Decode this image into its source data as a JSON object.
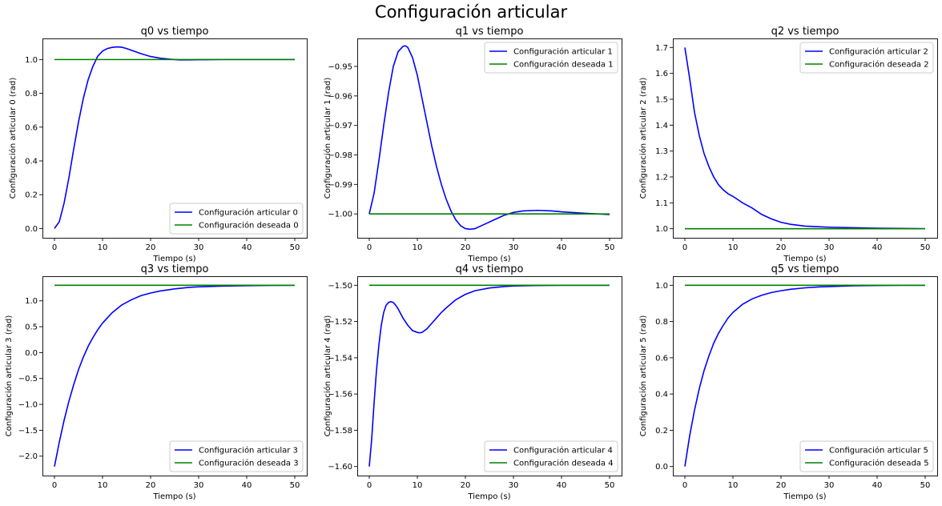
{
  "figure": {
    "suptitle": "Configuración articular",
    "colors": {
      "actual": "#0000ff",
      "desired": "#008000"
    }
  },
  "chart_data": [
    {
      "type": "line",
      "title": "q0 vs tiempo",
      "xlabel": "Tiempo (s)",
      "ylabel": "Configuración articular 0 (rad)",
      "xlim": [
        -2.5,
        52.5
      ],
      "ylim": [
        -0.055,
        1.125
      ],
      "xticks": [
        "0",
        "10",
        "20",
        "30",
        "40",
        "50"
      ],
      "xtick_values": [
        0,
        10,
        20,
        30,
        40,
        50
      ],
      "yticks": [
        "0.0",
        "0.2",
        "0.4",
        "0.6",
        "0.8",
        "1.0"
      ],
      "ytick_values": [
        0,
        0.2,
        0.4,
        0.6,
        0.8,
        1.0
      ],
      "grid": false,
      "legend": "lower right",
      "series": [
        {
          "name": "Configuración articular 0",
          "color": "#0000ff",
          "x": [
            0,
            1,
            2,
            3,
            4,
            5,
            6,
            7,
            8,
            9,
            10,
            11,
            12,
            13,
            14,
            15,
            16,
            18,
            20,
            22,
            24,
            26,
            28,
            30,
            35,
            40,
            45,
            50
          ],
          "y": [
            0.0,
            0.04,
            0.15,
            0.3,
            0.47,
            0.63,
            0.77,
            0.88,
            0.96,
            1.02,
            1.05,
            1.065,
            1.072,
            1.075,
            1.073,
            1.065,
            1.055,
            1.035,
            1.018,
            1.008,
            1.002,
            0.998,
            0.998,
            0.999,
            1.0,
            1.0,
            1.0,
            1.0
          ]
        },
        {
          "name": "Configuración deseada 0",
          "color": "#008000",
          "x": [
            0,
            50
          ],
          "y": [
            1.0,
            1.0
          ]
        }
      ]
    },
    {
      "type": "line",
      "title": "q1 vs tiempo",
      "xlabel": "Tiempo (s)",
      "ylabel": "Configuración articular 1 (rad)",
      "xlim": [
        -2.5,
        52.5
      ],
      "ylim": [
        -1.0081,
        -0.9405
      ],
      "xticks": [
        "0",
        "10",
        "20",
        "30",
        "40",
        "50"
      ],
      "xtick_values": [
        0,
        10,
        20,
        30,
        40,
        50
      ],
      "yticks": [
        "−1.00",
        "−0.99",
        "−0.98",
        "−0.97",
        "−0.96",
        "−0.95"
      ],
      "ytick_values": [
        -1.0,
        -0.99,
        -0.98,
        -0.97,
        -0.96,
        -0.95
      ],
      "grid": false,
      "legend": "upper right",
      "series": [
        {
          "name": "Configuración articular 1",
          "color": "#0000ff",
          "x": [
            0,
            1,
            2,
            3,
            4,
            5,
            6,
            7,
            7.5,
            8,
            9,
            10,
            11,
            12,
            13,
            14,
            15,
            16,
            17,
            18,
            19,
            20,
            21,
            22,
            24,
            26,
            28,
            30,
            32,
            35,
            38,
            40,
            45,
            50
          ],
          "y": [
            -1.0,
            -0.993,
            -0.982,
            -0.97,
            -0.959,
            -0.95,
            -0.945,
            -0.9432,
            -0.943,
            -0.9435,
            -0.947,
            -0.953,
            -0.961,
            -0.969,
            -0.977,
            -0.984,
            -0.99,
            -0.995,
            -0.999,
            -1.002,
            -1.004,
            -1.005,
            -1.0052,
            -1.005,
            -1.0035,
            -1.002,
            -1.0005,
            -0.9995,
            -0.999,
            -0.9988,
            -0.999,
            -0.9993,
            -0.9998,
            -1.0002
          ]
        },
        {
          "name": "Configuración deseada 1",
          "color": "#008000",
          "x": [
            0,
            50
          ],
          "y": [
            -1.0,
            -1.0
          ]
        }
      ]
    },
    {
      "type": "line",
      "title": "q2 vs tiempo",
      "xlabel": "Tiempo (s)",
      "ylabel": "Configuración articular 2 (rad)",
      "xlim": [
        -2.5,
        52.5
      ],
      "ylim": [
        0.965,
        1.735
      ],
      "xticks": [
        "0",
        "10",
        "20",
        "30",
        "40",
        "50"
      ],
      "xtick_values": [
        0,
        10,
        20,
        30,
        40,
        50
      ],
      "yticks": [
        "1.0",
        "1.1",
        "1.2",
        "1.3",
        "1.4",
        "1.5",
        "1.6",
        "1.7"
      ],
      "ytick_values": [
        1.0,
        1.1,
        1.2,
        1.3,
        1.4,
        1.5,
        1.6,
        1.7
      ],
      "grid": false,
      "legend": "upper right",
      "series": [
        {
          "name": "Configuración articular 2",
          "color": "#0000ff",
          "x": [
            0,
            1,
            2,
            3,
            4,
            5,
            6,
            7,
            8,
            9,
            10,
            12,
            14,
            16,
            18,
            20,
            22,
            25,
            30,
            35,
            40,
            45,
            50
          ],
          "y": [
            1.7,
            1.58,
            1.45,
            1.36,
            1.29,
            1.24,
            1.2,
            1.17,
            1.15,
            1.135,
            1.125,
            1.1,
            1.08,
            1.055,
            1.038,
            1.025,
            1.017,
            1.01,
            1.006,
            1.004,
            1.002,
            1.001,
            1.0
          ]
        },
        {
          "name": "Configuración deseada 2",
          "color": "#008000",
          "x": [
            0,
            50
          ],
          "y": [
            1.0,
            1.0
          ]
        }
      ]
    },
    {
      "type": "line",
      "title": "q3 vs tiempo",
      "xlabel": "Tiempo (s)",
      "ylabel": "Configuración articular 3 (rad)",
      "xlim": [
        -2.5,
        52.5
      ],
      "ylim": [
        -2.375,
        1.475
      ],
      "xticks": [
        "0",
        "10",
        "20",
        "30",
        "40",
        "50"
      ],
      "xtick_values": [
        0,
        10,
        20,
        30,
        40,
        50
      ],
      "yticks": [
        "−2.0",
        "−1.5",
        "−1.0",
        "−0.5",
        "0.0",
        "0.5",
        "1.0"
      ],
      "ytick_values": [
        -2.0,
        -1.5,
        -1.0,
        -0.5,
        0.0,
        0.5,
        1.0
      ],
      "grid": false,
      "legend": "lower right",
      "series": [
        {
          "name": "Configuración articular 3",
          "color": "#0000ff",
          "x": [
            0,
            1,
            2,
            3,
            4,
            5,
            6,
            7,
            8,
            9,
            10,
            12,
            14,
            16,
            18,
            20,
            22,
            25,
            28,
            30,
            35,
            40,
            45,
            50
          ],
          "y": [
            -2.2,
            -1.73,
            -1.31,
            -0.94,
            -0.62,
            -0.33,
            -0.09,
            0.12,
            0.29,
            0.44,
            0.57,
            0.77,
            0.92,
            1.02,
            1.1,
            1.15,
            1.19,
            1.23,
            1.26,
            1.27,
            1.285,
            1.293,
            1.297,
            1.3
          ]
        },
        {
          "name": "Configuración deseada 3",
          "color": "#008000",
          "x": [
            0,
            50
          ],
          "y": [
            1.3,
            1.3
          ]
        }
      ]
    },
    {
      "type": "line",
      "title": "q4 vs tiempo",
      "xlabel": "Tiempo (s)",
      "ylabel": "Configuración articular 4 (rad)",
      "xlim": [
        -2.5,
        52.5
      ],
      "ylim": [
        -1.605,
        -1.495
      ],
      "xticks": [
        "0",
        "10",
        "20",
        "30",
        "40",
        "50"
      ],
      "xtick_values": [
        0,
        10,
        20,
        30,
        40,
        50
      ],
      "yticks": [
        "−1.60",
        "−1.58",
        "−1.56",
        "−1.54",
        "−1.52",
        "−1.50"
      ],
      "ytick_values": [
        -1.6,
        -1.58,
        -1.56,
        -1.54,
        -1.52,
        -1.5
      ],
      "grid": false,
      "legend": "lower right",
      "series": [
        {
          "name": "Configuración articular 4",
          "color": "#0000ff",
          "x": [
            0,
            0.5,
            1,
            1.5,
            2,
            2.5,
            3,
            3.5,
            4,
            4.5,
            5,
            5.5,
            6,
            7,
            8,
            9,
            10,
            10.5,
            11,
            12,
            13,
            14,
            15,
            16,
            18,
            20,
            22,
            25,
            28,
            30,
            35,
            40,
            45,
            50
          ],
          "y": [
            -1.6,
            -1.585,
            -1.565,
            -1.547,
            -1.533,
            -1.522,
            -1.515,
            -1.511,
            -1.5095,
            -1.509,
            -1.5095,
            -1.511,
            -1.513,
            -1.518,
            -1.522,
            -1.525,
            -1.526,
            -1.5262,
            -1.526,
            -1.524,
            -1.521,
            -1.518,
            -1.515,
            -1.5125,
            -1.508,
            -1.505,
            -1.503,
            -1.5015,
            -1.5007,
            -1.5004,
            -1.5001,
            -1.5,
            -1.5,
            -1.5
          ]
        },
        {
          "name": "Configuración deseada 4",
          "color": "#008000",
          "x": [
            0,
            50
          ],
          "y": [
            -1.5,
            -1.5
          ]
        }
      ]
    },
    {
      "type": "line",
      "title": "q5 vs tiempo",
      "xlabel": "Tiempo (s)",
      "ylabel": "Configuración articular 5 (rad)",
      "xlim": [
        -2.5,
        52.5
      ],
      "ylim": [
        -0.05,
        1.05
      ],
      "xticks": [
        "0",
        "10",
        "20",
        "30",
        "40",
        "50"
      ],
      "xtick_values": [
        0,
        10,
        20,
        30,
        40,
        50
      ],
      "yticks": [
        "0.0",
        "0.2",
        "0.4",
        "0.6",
        "0.8",
        "1.0"
      ],
      "ytick_values": [
        0,
        0.2,
        0.4,
        0.6,
        0.8,
        1.0
      ],
      "grid": false,
      "legend": "lower right",
      "series": [
        {
          "name": "Configuración articular 5",
          "color": "#0000ff",
          "x": [
            0,
            1,
            2,
            3,
            4,
            5,
            6,
            7,
            8,
            9,
            10,
            12,
            14,
            16,
            18,
            20,
            22,
            25,
            28,
            30,
            35,
            40,
            45,
            50
          ],
          "y": [
            0.0,
            0.17,
            0.31,
            0.43,
            0.53,
            0.61,
            0.68,
            0.735,
            0.78,
            0.82,
            0.85,
            0.895,
            0.925,
            0.945,
            0.96,
            0.97,
            0.978,
            0.986,
            0.991,
            0.993,
            0.997,
            0.999,
            1.0,
            1.0
          ]
        },
        {
          "name": "Configuración deseada 5",
          "color": "#008000",
          "x": [
            0,
            50
          ],
          "y": [
            1.0,
            1.0
          ]
        }
      ]
    }
  ]
}
